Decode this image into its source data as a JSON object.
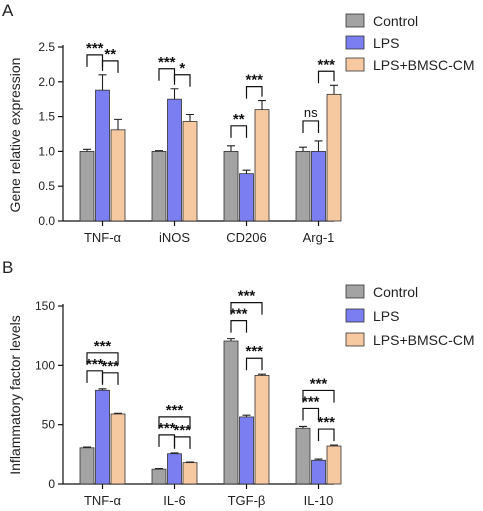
{
  "chart_data": [
    {
      "panel_label": "A",
      "type": "bar",
      "ylabel": "Gene relative expression",
      "xlabel": "",
      "ylim": [
        0,
        2.5
      ],
      "yticks": [
        "0.0",
        "0.5",
        "1.0",
        "1.5",
        "2.0",
        "2.5"
      ],
      "categories": [
        "TNF-α",
        "iNOS",
        "CD206",
        "Arg-1"
      ],
      "series": [
        {
          "name": "Control",
          "color": "#a3a3a3",
          "values": [
            1.0,
            1.0,
            1.0,
            1.0
          ],
          "errors": [
            0.03,
            0.01,
            0.08,
            0.06
          ]
        },
        {
          "name": "LPS",
          "color": "#7b7ef0",
          "values": [
            1.88,
            1.75,
            0.68,
            1.0
          ],
          "errors": [
            0.22,
            0.15,
            0.05,
            0.15
          ]
        },
        {
          "name": "LPS+BMSC-CM",
          "color": "#f7c9a0",
          "values": [
            1.31,
            1.43,
            1.6,
            1.82
          ],
          "errors": [
            0.15,
            0.1,
            0.13,
            0.13
          ]
        }
      ],
      "legend": [
        "Control",
        "LPS",
        "LPS+BMSC-CM"
      ],
      "legend_position": "right",
      "significance": [
        {
          "category": 0,
          "pair": [
            0,
            1
          ],
          "label": "***"
        },
        {
          "category": 0,
          "pair": [
            1,
            2
          ],
          "label": "**"
        },
        {
          "category": 1,
          "pair": [
            0,
            1
          ],
          "label": "***"
        },
        {
          "category": 1,
          "pair": [
            1,
            2
          ],
          "label": "*"
        },
        {
          "category": 2,
          "pair": [
            0,
            1
          ],
          "label": "**"
        },
        {
          "category": 2,
          "pair": [
            1,
            2
          ],
          "label": "***"
        },
        {
          "category": 3,
          "pair": [
            0,
            1
          ],
          "label": "ns"
        },
        {
          "category": 3,
          "pair": [
            1,
            2
          ],
          "label": "***"
        }
      ]
    },
    {
      "panel_label": "B",
      "type": "bar",
      "ylabel": "Inflammatory factor levels",
      "xlabel": "",
      "ylim": [
        0,
        150
      ],
      "yticks": [
        "0",
        "50",
        "100",
        "150"
      ],
      "categories": [
        "TNF-α",
        "IL-6",
        "TGF-β",
        "IL-10"
      ],
      "series": [
        {
          "name": "Control",
          "color": "#a3a3a3",
          "values": [
            30.5,
            12.5,
            120.5,
            47
          ],
          "errors": [
            0.6,
            0.5,
            2,
            1.5
          ]
        },
        {
          "name": "LPS",
          "color": "#7b7ef0",
          "values": [
            79,
            25.5,
            56.5,
            20
          ],
          "errors": [
            1.2,
            0.7,
            1.5,
            1
          ]
        },
        {
          "name": "LPS+BMSC-CM",
          "color": "#f7c9a0",
          "values": [
            59,
            18,
            91.5,
            32
          ],
          "errors": [
            0.6,
            0.5,
            1,
            0.8
          ]
        }
      ],
      "legend": [
        "Control",
        "LPS",
        "LPS+BMSC-CM"
      ],
      "legend_position": "right",
      "significance": [
        {
          "category": 0,
          "pair": [
            0,
            1
          ],
          "label": "***"
        },
        {
          "category": 0,
          "pair": [
            1,
            2
          ],
          "label": "***"
        },
        {
          "category": 0,
          "pair": [
            0,
            2
          ],
          "label": "***"
        },
        {
          "category": 1,
          "pair": [
            0,
            1
          ],
          "label": "***"
        },
        {
          "category": 1,
          "pair": [
            1,
            2
          ],
          "label": "***"
        },
        {
          "category": 1,
          "pair": [
            0,
            2
          ],
          "label": "***"
        },
        {
          "category": 2,
          "pair": [
            0,
            1
          ],
          "label": "***"
        },
        {
          "category": 2,
          "pair": [
            1,
            2
          ],
          "label": "***"
        },
        {
          "category": 2,
          "pair": [
            0,
            2
          ],
          "label": "***"
        },
        {
          "category": 3,
          "pair": [
            0,
            1
          ],
          "label": "***"
        },
        {
          "category": 3,
          "pair": [
            1,
            2
          ],
          "label": "***"
        },
        {
          "category": 3,
          "pair": [
            0,
            2
          ],
          "label": "***"
        }
      ]
    }
  ]
}
